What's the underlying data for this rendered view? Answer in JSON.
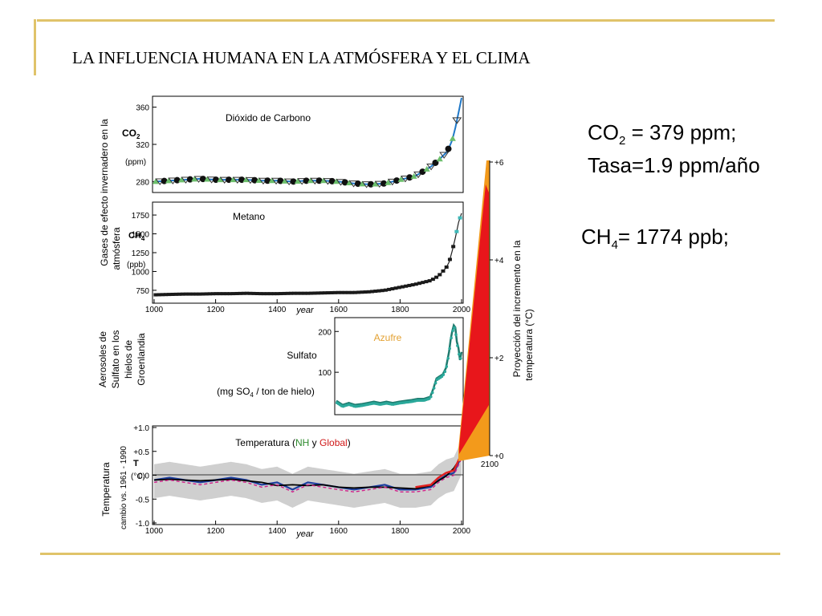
{
  "slide": {
    "title": "LA INFLUENCIA HUMANA EN LA ATMÓSFERA Y EL CLIMA",
    "co2_line1_pre": "CO",
    "co2_line1_sub": "2",
    "co2_line1_post": " = 379 ppm;",
    "co2_line2": "Tasa=1.9 ppm/año",
    "ch4_pre": "CH",
    "ch4_sub": "4",
    "ch4_post": "= 1774 ppb;"
  },
  "labels": {
    "gases_line1": "Gases de efecto invernadero en la",
    "gases_line2": "atmósfera",
    "aerosol_line1": "Aerosoles de",
    "aerosol_line2": "Sulfato en los",
    "aerosol_line3": "hielos de",
    "aerosol_line4": "Groenlandia",
    "temp_line1": "Temperatura",
    "temp_line2": "cambio vs. 1961 - 1990",
    "proj_line1": "Proyección del incremento en la",
    "proj_line2": "temperatura (°C)"
  },
  "chart_data": [
    {
      "type": "scatter",
      "title": "Dióxido de Carbono",
      "ylabel_main": "CO",
      "ylabel_sub": "2",
      "yunit": "(ppm)",
      "xlim": [
        1000,
        2000
      ],
      "ylim": [
        270,
        370
      ],
      "yticks": [
        "360",
        "320",
        "280"
      ],
      "yticks_values": [
        360,
        320,
        280
      ],
      "x": [
        1005,
        1050,
        1100,
        1150,
        1200,
        1250,
        1300,
        1350,
        1400,
        1450,
        1500,
        1550,
        1600,
        1650,
        1700,
        1750,
        1800,
        1850,
        1900,
        1925,
        1950,
        1960,
        1970,
        1980,
        1990,
        2000
      ],
      "y": [
        280,
        281,
        282,
        283,
        282,
        282,
        282,
        281,
        281,
        280,
        281,
        281,
        280,
        278,
        277,
        278,
        282,
        286,
        296,
        303,
        311,
        317,
        325,
        338,
        354,
        370
      ]
    },
    {
      "type": "scatter",
      "title": "Metano",
      "ylabel_main": "CH",
      "ylabel_sub": "4",
      "yunit": "(ppb)",
      "xlim": [
        1000,
        2000
      ],
      "ylim": [
        600,
        1900
      ],
      "yticks": [
        "1750",
        "1500",
        "1250",
        "1000",
        "750"
      ],
      "yticks_values": [
        1750,
        1500,
        1250,
        1000,
        750
      ],
      "xticks": [
        "1000",
        "1200",
        "1400",
        "1600",
        "1800",
        "2000"
      ],
      "xticks_values": [
        1000,
        1200,
        1400,
        1600,
        1800,
        2000
      ],
      "xlabel": "year",
      "x": [
        1005,
        1050,
        1100,
        1150,
        1200,
        1250,
        1300,
        1350,
        1400,
        1450,
        1500,
        1550,
        1600,
        1650,
        1700,
        1750,
        1800,
        1850,
        1900,
        1925,
        1950,
        1960,
        1970,
        1980,
        1990,
        2000
      ],
      "y": [
        690,
        695,
        700,
        700,
        705,
        705,
        710,
        705,
        705,
        710,
        710,
        715,
        720,
        720,
        730,
        750,
        790,
        830,
        880,
        940,
        1050,
        1130,
        1280,
        1450,
        1650,
        1774
      ]
    },
    {
      "type": "line",
      "title": "Azufre",
      "series_label": "Sulfato",
      "unit_pre": "(mg SO",
      "unit_sub": "4",
      "unit_post": " / ton de hielo)",
      "xlim": [
        1600,
        2000
      ],
      "ylim": [
        0,
        230
      ],
      "yticks": [
        "200",
        "100"
      ],
      "yticks_values": [
        200,
        100
      ],
      "x": [
        1600,
        1620,
        1640,
        1660,
        1680,
        1700,
        1720,
        1740,
        1760,
        1780,
        1800,
        1820,
        1840,
        1860,
        1880,
        1900,
        1910,
        1920,
        1930,
        1940,
        1950,
        1960,
        1965,
        1970,
        1975,
        1980,
        1985,
        1990,
        1995,
        2000
      ],
      "y": [
        30,
        20,
        25,
        20,
        22,
        25,
        28,
        25,
        28,
        25,
        28,
        30,
        32,
        35,
        35,
        40,
        60,
        85,
        90,
        95,
        110,
        150,
        180,
        200,
        215,
        210,
        175,
        160,
        130,
        150
      ]
    },
    {
      "type": "line",
      "title_pre": "Temperatura (",
      "title_nh": "NH",
      "title_mid": " y ",
      "title_global": "Global",
      "title_post": ")",
      "ylabel": "T",
      "yunit": "(°C)",
      "xlim": [
        1000,
        2000
      ],
      "ylim": [
        -1.0,
        1.0
      ],
      "yticks": [
        "+1.0",
        "+0.5",
        "0.0",
        "-0.5",
        "-1.0"
      ],
      "yticks_values": [
        1.0,
        0.5,
        0.0,
        -0.5,
        -1.0
      ],
      "xticks": [
        "1000",
        "1200",
        "1400",
        "1600",
        "1800",
        "2000"
      ],
      "xticks_values": [
        1000,
        1200,
        1400,
        1600,
        1800,
        2000
      ],
      "xlabel": "year",
      "x": [
        1000,
        1050,
        1100,
        1150,
        1200,
        1250,
        1300,
        1350,
        1400,
        1450,
        1500,
        1550,
        1600,
        1650,
        1700,
        1750,
        1800,
        1850,
        1900,
        1925,
        1950,
        1975,
        2000
      ],
      "y": [
        -0.1,
        -0.05,
        -0.1,
        -0.15,
        -0.1,
        -0.05,
        -0.1,
        -0.2,
        -0.15,
        -0.3,
        -0.15,
        -0.2,
        -0.25,
        -0.3,
        -0.25,
        -0.2,
        -0.3,
        -0.3,
        -0.25,
        -0.1,
        0.0,
        0.05,
        0.4
      ]
    },
    {
      "type": "area",
      "xlabel": "2100",
      "ylim": [
        0,
        6
      ],
      "yticks": [
        "+6",
        "+4",
        "+2",
        "+0"
      ],
      "yticks_values": [
        6,
        4,
        2,
        0
      ]
    }
  ]
}
